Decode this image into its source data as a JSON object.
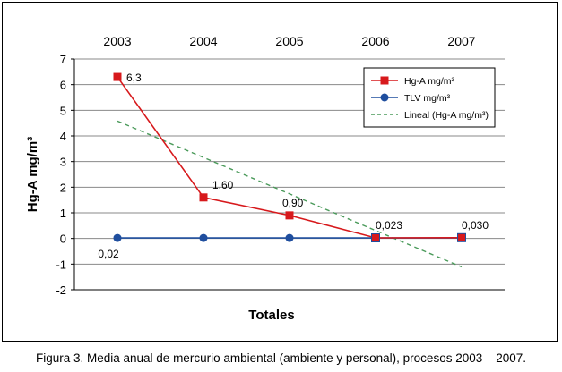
{
  "chart_data": {
    "type": "line",
    "top_axis_labels": [
      "2003",
      "2004",
      "2005",
      "2006",
      "2007"
    ],
    "xlabel": "Totales",
    "ylabel": "Hg-A mg/m³",
    "ylim": [
      -2,
      7
    ],
    "yticks": [
      "7",
      "6",
      "5",
      "4",
      "3",
      "2",
      "1",
      "0",
      "-1",
      "-2"
    ],
    "ytick_values": [
      7,
      6,
      5,
      4,
      3,
      2,
      1,
      0,
      -1,
      -2
    ],
    "grid": "horizontal",
    "legend_position": "top-right",
    "series": [
      {
        "name": "Hg-A mg/m³",
        "color": "#d7191c",
        "marker": "square",
        "values": [
          6.3,
          1.6,
          0.9,
          0.023,
          0.03
        ],
        "labels": [
          "6,3",
          "1,60",
          "0,90",
          "0,023",
          "0,030"
        ]
      },
      {
        "name": "TLV mg/m³",
        "color": "#1f4e9e",
        "marker": "circle",
        "values": [
          0.02,
          0.02,
          0.02,
          0.02,
          0.02
        ],
        "labels": [
          "0,02",
          "",
          "",
          "",
          ""
        ]
      },
      {
        "name": "Lineal (Hg-A mg/m³)",
        "color": "#4a9a5a",
        "style": "dashed",
        "values": [
          4.58,
          3.16,
          1.74,
          0.31,
          -1.11
        ]
      }
    ]
  },
  "caption": "Figura 3. Media anual de mercurio ambiental (ambiente y personal), procesos 2003 – 2007."
}
